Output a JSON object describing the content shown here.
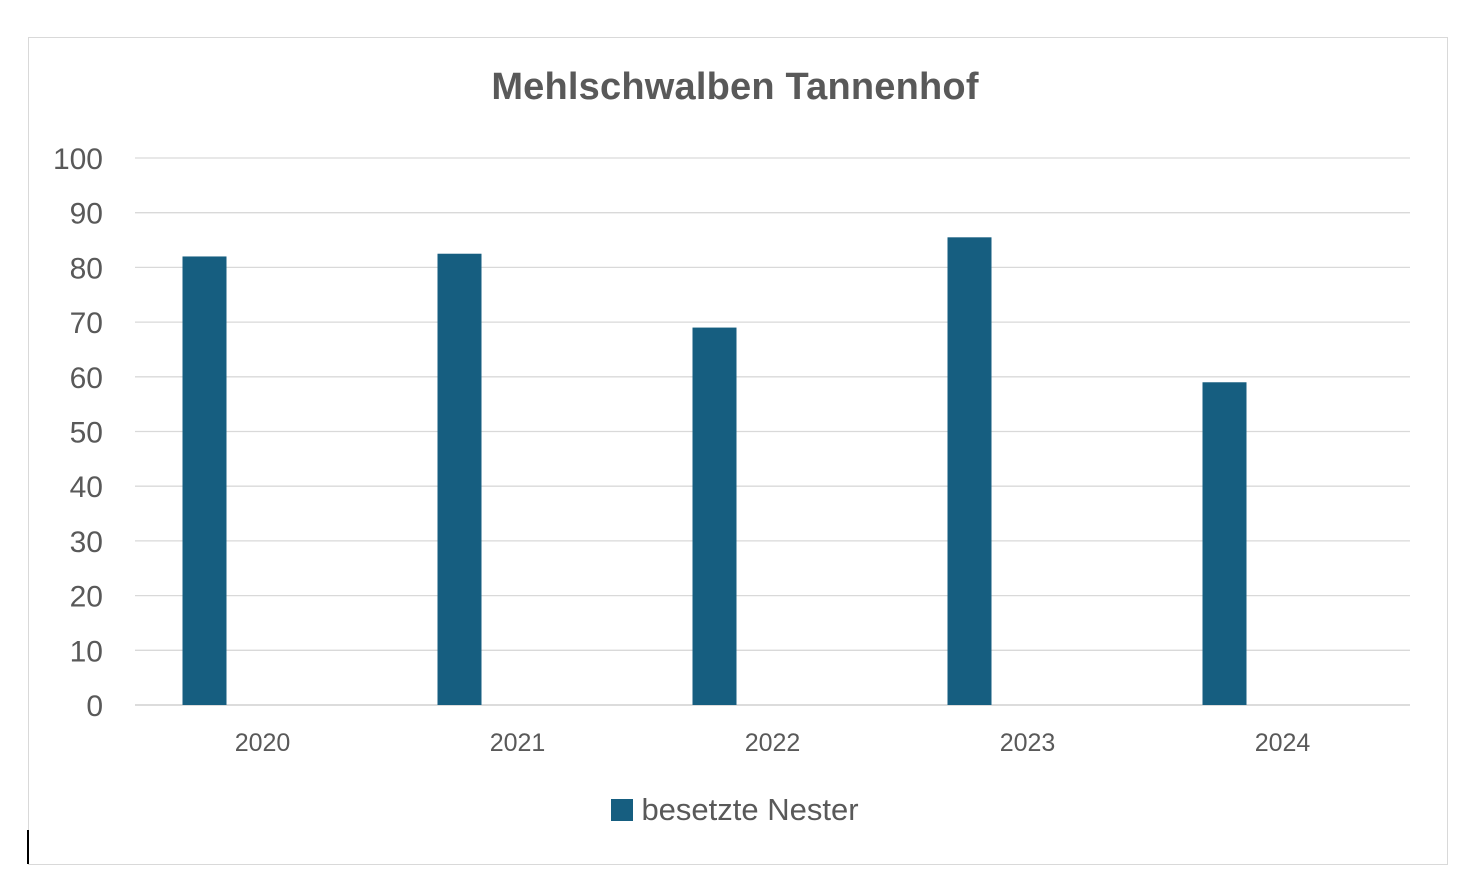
{
  "chart_data": {
    "type": "bar",
    "title": "Mehlschwalben Tannenhof",
    "categories": [
      "2020",
      "2021",
      "2022",
      "2023",
      "2024"
    ],
    "series": [
      {
        "name": "besetzte Nester",
        "values": [
          82,
          82.5,
          69,
          85.5,
          59
        ],
        "color": "#165e80"
      }
    ],
    "y_ticks": [
      "0",
      "10",
      "20",
      "30",
      "40",
      "50",
      "60",
      "70",
      "80",
      "90",
      "100"
    ],
    "ylim": [
      0,
      100
    ],
    "grid": true,
    "legend_position": "bottom"
  }
}
